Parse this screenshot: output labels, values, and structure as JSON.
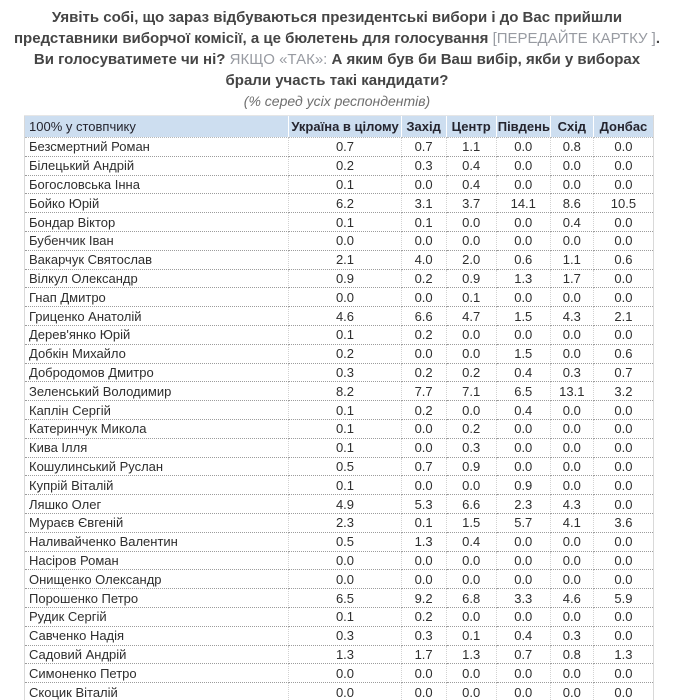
{
  "question": {
    "part1": "Уявіть собі, що зараз відбуваються президентські вибори і до Вас прийшли представники виборчої комісії, а це бюлетень для голосування ",
    "bracket1": "[ПЕРЕДАЙТЕ КАРТКУ ]",
    "part2": ". Ви голосуватимете чи ні? ",
    "bracket2": "ЯКЩО «ТАК»:",
    "part3": " А яким був би Ваш вибір, якби у виборах брали участь такі кандидати?"
  },
  "subtitle": "(% серед усіх респондентів)",
  "colors": {
    "header_bg": "#cddef0",
    "question_text": "#454545",
    "muted_text": "#989ba2"
  },
  "table": {
    "header": [
      "100% у стовпчику",
      "Україна в цілому",
      "Захід",
      "Центр",
      "Південь",
      "Схід",
      "Донбас"
    ],
    "rows": [
      {
        "name": "Безсмертний Роман",
        "values": [
          "0.7",
          "0.7",
          "1.1",
          "0.0",
          "0.8",
          "0.0"
        ]
      },
      {
        "name": "Білецький Андрій",
        "values": [
          "0.2",
          "0.3",
          "0.4",
          "0.0",
          "0.0",
          "0.0"
        ]
      },
      {
        "name": "Богословська Інна",
        "values": [
          "0.1",
          "0.0",
          "0.4",
          "0.0",
          "0.0",
          "0.0"
        ]
      },
      {
        "name": "Бойко Юрій",
        "values": [
          "6.2",
          "3.1",
          "3.7",
          "14.1",
          "8.6",
          "10.5"
        ]
      },
      {
        "name": "Бондар Віктор",
        "values": [
          "0.1",
          "0.1",
          "0.0",
          "0.0",
          "0.4",
          "0.0"
        ]
      },
      {
        "name": "Бубенчик Іван",
        "values": [
          "0.0",
          "0.0",
          "0.0",
          "0.0",
          "0.0",
          "0.0"
        ]
      },
      {
        "name": "Вакарчук Святослав",
        "values": [
          "2.1",
          "4.0",
          "2.0",
          "0.6",
          "1.1",
          "0.6"
        ]
      },
      {
        "name": "Вілкул Олександр",
        "values": [
          "0.9",
          "0.2",
          "0.9",
          "1.3",
          "1.7",
          "0.0"
        ]
      },
      {
        "name": "Гнап Дмитро",
        "values": [
          "0.0",
          "0.0",
          "0.1",
          "0.0",
          "0.0",
          "0.0"
        ]
      },
      {
        "name": "Гриценко Анатолій",
        "values": [
          "4.6",
          "6.6",
          "4.7",
          "1.5",
          "4.3",
          "2.1"
        ]
      },
      {
        "name": "Дерев'янко Юрій",
        "values": [
          "0.1",
          "0.2",
          "0.0",
          "0.0",
          "0.0",
          "0.0"
        ]
      },
      {
        "name": "Добкін Михайло",
        "values": [
          "0.2",
          "0.0",
          "0.0",
          "1.5",
          "0.0",
          "0.6"
        ]
      },
      {
        "name": "Добродомов Дмитро",
        "values": [
          "0.3",
          "0.2",
          "0.2",
          "0.4",
          "0.3",
          "0.7"
        ]
      },
      {
        "name": "Зеленський Володимир",
        "values": [
          "8.2",
          "7.7",
          "7.1",
          "6.5",
          "13.1",
          "3.2"
        ]
      },
      {
        "name": "Каплін Сергій",
        "values": [
          "0.1",
          "0.2",
          "0.0",
          "0.4",
          "0.0",
          "0.0"
        ]
      },
      {
        "name": "Катеринчук Микола",
        "values": [
          "0.1",
          "0.0",
          "0.2",
          "0.0",
          "0.0",
          "0.0"
        ]
      },
      {
        "name": "Кива Ілля",
        "values": [
          "0.1",
          "0.0",
          "0.3",
          "0.0",
          "0.0",
          "0.0"
        ]
      },
      {
        "name": "Кошулинський Руслан",
        "values": [
          "0.5",
          "0.7",
          "0.9",
          "0.0",
          "0.0",
          "0.0"
        ]
      },
      {
        "name": "Купрій Віталій",
        "values": [
          "0.1",
          "0.0",
          "0.0",
          "0.9",
          "0.0",
          "0.0"
        ]
      },
      {
        "name": "Ляшко Олег",
        "values": [
          "4.9",
          "5.3",
          "6.6",
          "2.3",
          "4.3",
          "0.0"
        ]
      },
      {
        "name": "Мураєв Євгеній",
        "values": [
          "2.3",
          "0.1",
          "1.5",
          "5.7",
          "4.1",
          "3.6"
        ]
      },
      {
        "name": "Наливайченко Валентин",
        "values": [
          "0.5",
          "1.3",
          "0.4",
          "0.0",
          "0.0",
          "0.0"
        ]
      },
      {
        "name": "Насіров Роман",
        "values": [
          "0.0",
          "0.0",
          "0.0",
          "0.0",
          "0.0",
          "0.0"
        ]
      },
      {
        "name": "Онищенко Олександр",
        "values": [
          "0.0",
          "0.0",
          "0.0",
          "0.0",
          "0.0",
          "0.0"
        ]
      },
      {
        "name": "Порошенко Петро",
        "values": [
          "6.5",
          "9.2",
          "6.8",
          "3.3",
          "4.6",
          "5.9"
        ]
      },
      {
        "name": "Рудик Сергій",
        "values": [
          "0.1",
          "0.2",
          "0.0",
          "0.0",
          "0.0",
          "0.0"
        ]
      },
      {
        "name": "Савченко Надія",
        "values": [
          "0.3",
          "0.3",
          "0.1",
          "0.4",
          "0.3",
          "0.0"
        ]
      },
      {
        "name": "Садовий Андрій",
        "values": [
          "1.3",
          "1.7",
          "1.3",
          "0.7",
          "0.8",
          "1.3"
        ]
      },
      {
        "name": "Симоненко Петро",
        "values": [
          "0.0",
          "0.0",
          "0.0",
          "0.0",
          "0.0",
          "0.0"
        ]
      },
      {
        "name": "Скоцик Віталій",
        "values": [
          "0.0",
          "0.0",
          "0.0",
          "0.0",
          "0.0",
          "0.0"
        ]
      }
    ]
  }
}
